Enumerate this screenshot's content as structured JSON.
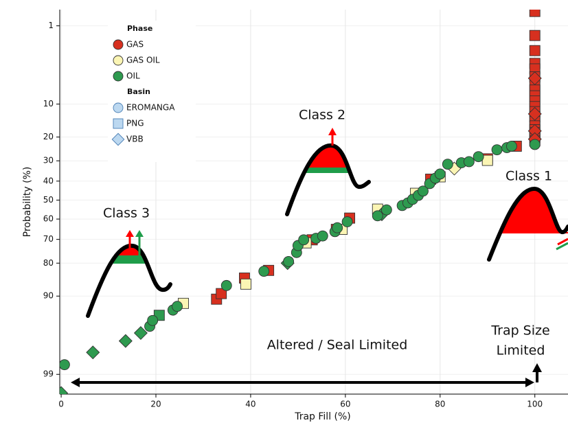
{
  "chart_data": {
    "type": "scatter",
    "xlabel": "Trap Fill (%)",
    "ylabel": "Probability (%)",
    "xlim": [
      -0.3,
      107
    ],
    "xticks": [
      0,
      20,
      40,
      60,
      80,
      100
    ],
    "ylim": [
      0.55,
      99.52
    ],
    "yticks": [
      1,
      10,
      20,
      30,
      40,
      50,
      60,
      70,
      80,
      90,
      99
    ],
    "yscale": "probit",
    "grid": true,
    "legend": {
      "position": "upper left",
      "phase_title": "Phase",
      "phases": [
        {
          "name": "GAS",
          "color": "#d7301f"
        },
        {
          "name": "GAS OIL",
          "color": "#fbf5b4"
        },
        {
          "name": "OIL",
          "color": "#2e9a4f"
        }
      ],
      "basin_title": "Basin",
      "basin_color": "#bcd8f0",
      "basins": [
        {
          "name": "EROMANGA",
          "shape": "circle"
        },
        {
          "name": "PNG",
          "shape": "square"
        },
        {
          "name": "VBB",
          "shape": "diamond"
        }
      ]
    },
    "series": [
      {
        "phase": "GAS",
        "basin": "PNG",
        "x": [
          32.8,
          33.8,
          38.7,
          43.8,
          53.0,
          58.1,
          60.9,
          78.0,
          90.0,
          96.1,
          100,
          100,
          100,
          100,
          100,
          100,
          100,
          100,
          100,
          100,
          100,
          100,
          100,
          100,
          100,
          100,
          100,
          100,
          100,
          100
        ],
        "y": [
          90.7,
          89.4,
          85.1,
          82.6,
          70.2,
          65.2,
          59.5,
          39.0,
          29.1,
          23.6,
          0.59,
          1.4,
          2.3,
          3.4,
          4.0,
          5.0,
          6.2,
          7.1,
          8.2,
          9.3,
          10.6,
          11.9,
          13.3,
          14.7,
          16.1,
          17.4,
          18.4,
          19.5,
          20.3,
          21.5
        ]
      },
      {
        "phase": "GAS",
        "basin": "VBB",
        "x": [
          100,
          100,
          100,
          100
        ],
        "y": [
          5.2,
          12.5,
          17.8,
          20.8
        ]
      },
      {
        "phase": "GAS OIL",
        "basin": "PNG",
        "x": [
          25.8,
          39.0,
          51.7,
          59.3,
          66.8,
          74.8,
          80.0,
          90.0
        ],
        "y": [
          91.6,
          86.9,
          71.6,
          65.2,
          54.8,
          46.4,
          37.8,
          29.8
        ]
      },
      {
        "phase": "GAS OIL",
        "basin": "VBB",
        "x": [
          83.0
        ],
        "y": [
          33.7
        ]
      },
      {
        "phase": "OIL",
        "basin": "PNG",
        "x": [
          20.7
        ],
        "y": [
          93.8
        ]
      },
      {
        "phase": "OIL",
        "basin": "VBB",
        "x": [
          0,
          6.7,
          13.6,
          16.8,
          47.8,
          67.7
        ],
        "y": [
          99.5,
          97.9,
          97.0,
          96.2,
          80,
          57.5
        ]
      },
      {
        "phase": "OIL",
        "basin": "EROMANGA",
        "x": [
          0.7,
          18.7,
          19.3,
          23.6,
          24.5,
          34.9,
          42.8,
          48.0,
          49.7,
          50.0,
          51.2,
          53.8,
          55.2,
          57.8,
          58.3,
          60.4,
          66.8,
          68.7,
          72.0,
          73.2,
          74.2,
          75.4,
          76.4,
          77.8,
          79.0,
          80.0,
          81.6,
          84.5,
          86.1,
          88.1,
          92.0,
          94.1,
          95.1,
          100
        ],
        "y": [
          98.6,
          95.4,
          94.6,
          92.9,
          92.2,
          87.3,
          82.9,
          79.4,
          75.8,
          72.8,
          70.2,
          69.5,
          68.4,
          66.3,
          64.4,
          61.4,
          58.3,
          55.2,
          52.9,
          51.5,
          49.6,
          47.5,
          45.2,
          41.3,
          38.5,
          36.4,
          31.6,
          30.9,
          30.4,
          28.1,
          25.1,
          24.2,
          23.6,
          22.9
        ]
      }
    ],
    "annotations": {
      "class_1": "Class 1",
      "class_2": "Class 2",
      "class_3": "Class 3",
      "altered": "Altered / Seal Limited",
      "trap_size_line1": "Trap Size",
      "trap_size_line2": "Limited"
    }
  }
}
